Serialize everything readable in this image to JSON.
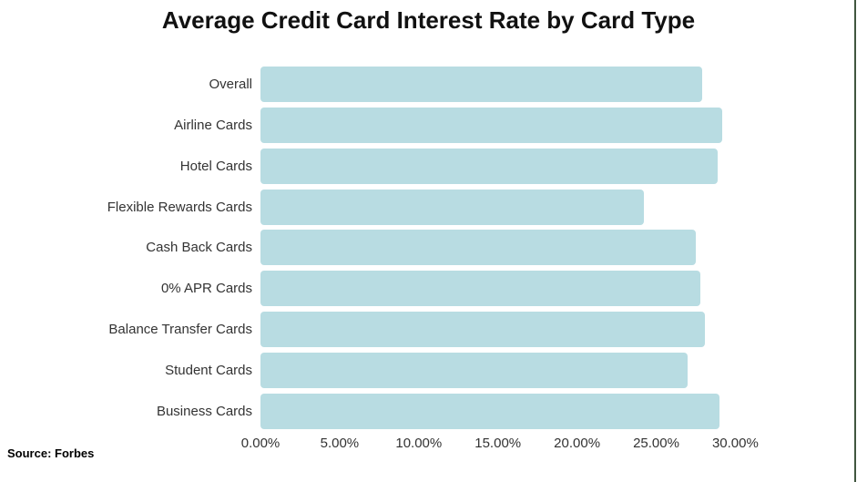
{
  "title": "Average Credit Card Interest Rate by Card Type",
  "source": "Source: Forbes",
  "colors": {
    "bar": "#b8dce2",
    "title_text": "#111111",
    "label_text": "#333333",
    "right_edge_line": "#40563f",
    "background": "#ffffff"
  },
  "chart_data": {
    "type": "bar",
    "orientation": "horizontal",
    "title": "Average Credit Card Interest Rate by Card Type",
    "categories": [
      "Overall",
      "Airline Cards",
      "Hotel Cards",
      "Flexible Rewards Cards",
      "Cash Back Cards",
      "0% APR Cards",
      "Balance Transfer Cards",
      "Student Cards",
      "Business Cards"
    ],
    "values": [
      27.9,
      29.2,
      28.9,
      24.2,
      27.5,
      27.8,
      28.1,
      27.0,
      29.0
    ],
    "unit": "%",
    "xlabel": "",
    "ylabel": "",
    "x_tick_labels": [
      "0.00%",
      "5.00%",
      "10.00%",
      "15.00%",
      "20.00%",
      "25.00%",
      "30.00%"
    ],
    "x_tick_values": [
      0,
      5,
      10,
      15,
      20,
      25,
      30
    ],
    "xlim": [
      0,
      37.5
    ],
    "grid": false,
    "legend": "none",
    "source_note": "Source: Forbes"
  }
}
